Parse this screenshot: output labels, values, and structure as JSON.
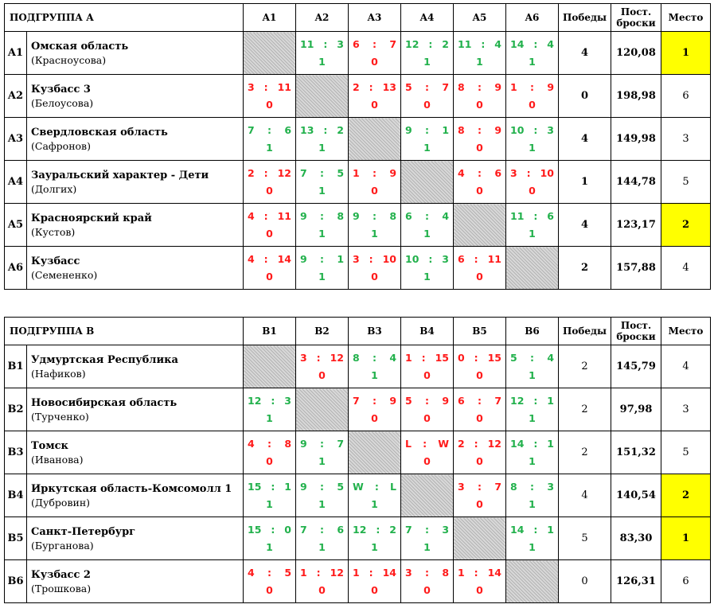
{
  "groups": [
    {
      "title": "ПОДГРУППА А",
      "columns": [
        "A1",
        "A2",
        "A3",
        "A4",
        "A5",
        "A6"
      ],
      "wins_label": "Победы",
      "throws_label": "Пост. броски",
      "place_label": "Место",
      "rows": [
        {
          "code": "A1",
          "team": "Омская область",
          "coach": "(Красноусова)",
          "cells": [
            null,
            {
              "l": "11",
              "r": "3",
              "p": "1",
              "w": true
            },
            {
              "l": "6",
              "r": "7",
              "p": "0",
              "w": false
            },
            {
              "l": "12",
              "r": "2",
              "p": "1",
              "w": true
            },
            {
              "l": "11",
              "r": "4",
              "p": "1",
              "w": true
            },
            {
              "l": "14",
              "r": "4",
              "p": "1",
              "w": true
            }
          ],
          "wins": "4",
          "wins_bold": true,
          "throws": "120,08",
          "place": "1",
          "highlight": true
        },
        {
          "code": "A2",
          "team": "Кузбасс 3",
          "coach": "(Белоусова)",
          "cells": [
            {
              "l": "3",
              "r": "11",
              "p": "0",
              "w": false
            },
            null,
            {
              "l": "2",
              "r": "13",
              "p": "0",
              "w": false
            },
            {
              "l": "5",
              "r": "7",
              "p": "0",
              "w": false
            },
            {
              "l": "8",
              "r": "9",
              "p": "0",
              "w": false
            },
            {
              "l": "1",
              "r": "9",
              "p": "0",
              "w": false
            }
          ],
          "wins": "0",
          "wins_bold": true,
          "throws": "198,98",
          "place": "6",
          "highlight": false
        },
        {
          "code": "A3",
          "team": "Свердловская область",
          "coach": "(Сафронов)",
          "cells": [
            {
              "l": "7",
              "r": "6",
              "p": "1",
              "w": true
            },
            {
              "l": "13",
              "r": "2",
              "p": "1",
              "w": true
            },
            null,
            {
              "l": "9",
              "r": "1",
              "p": "1",
              "w": true
            },
            {
              "l": "8",
              "r": "9",
              "p": "0",
              "w": false
            },
            {
              "l": "10",
              "r": "3",
              "p": "1",
              "w": true
            }
          ],
          "wins": "4",
          "wins_bold": true,
          "throws": "149,98",
          "place": "3",
          "highlight": false
        },
        {
          "code": "A4",
          "team": "Зауральский характер - Дети",
          "coach": "(Долгих)",
          "cells": [
            {
              "l": "2",
              "r": "12",
              "p": "0",
              "w": false
            },
            {
              "l": "7",
              "r": "5",
              "p": "1",
              "w": true
            },
            {
              "l": "1",
              "r": "9",
              "p": "0",
              "w": false
            },
            null,
            {
              "l": "4",
              "r": "6",
              "p": "0",
              "w": false
            },
            {
              "l": "3",
              "r": "10",
              "p": "0",
              "w": false
            }
          ],
          "wins": "1",
          "wins_bold": true,
          "throws": "144,78",
          "place": "5",
          "highlight": false
        },
        {
          "code": "A5",
          "team": "Красноярский край",
          "coach": "(Кустов)",
          "cells": [
            {
              "l": "4",
              "r": "11",
              "p": "0",
              "w": false
            },
            {
              "l": "9",
              "r": "8",
              "p": "1",
              "w": true
            },
            {
              "l": "9",
              "r": "8",
              "p": "1",
              "w": true
            },
            {
              "l": "6",
              "r": "4",
              "p": "1",
              "w": true
            },
            null,
            {
              "l": "11",
              "r": "6",
              "p": "1",
              "w": true
            }
          ],
          "wins": "4",
          "wins_bold": true,
          "throws": "123,17",
          "place": "2",
          "highlight": true
        },
        {
          "code": "A6",
          "team": "Кузбасс",
          "coach": "(Семененко)",
          "cells": [
            {
              "l": "4",
              "r": "14",
              "p": "0",
              "w": false
            },
            {
              "l": "9",
              "r": "1",
              "p": "1",
              "w": true
            },
            {
              "l": "3",
              "r": "10",
              "p": "0",
              "w": false
            },
            {
              "l": "10",
              "r": "3",
              "p": "1",
              "w": true
            },
            {
              "l": "6",
              "r": "11",
              "p": "0",
              "w": false
            },
            null
          ],
          "wins": "2",
          "wins_bold": true,
          "throws": "157,88",
          "place": "4",
          "highlight": false
        }
      ]
    },
    {
      "title": "ПОДГРУППА В",
      "columns": [
        "B1",
        "B2",
        "B3",
        "B4",
        "B5",
        "B6"
      ],
      "wins_label": "Победы",
      "throws_label": "Пост. броски",
      "place_label": "Место",
      "rows": [
        {
          "code": "B1",
          "team": "Удмуртская Республика",
          "coach": "(Нафиков)",
          "cells": [
            null,
            {
              "l": "3",
              "r": "12",
              "p": "0",
              "w": false
            },
            {
              "l": "8",
              "r": "4",
              "p": "1",
              "w": true
            },
            {
              "l": "1",
              "r": "15",
              "p": "0",
              "w": false
            },
            {
              "l": "0",
              "r": "15",
              "p": "0",
              "w": false
            },
            {
              "l": "5",
              "r": "4",
              "p": "1",
              "w": true
            }
          ],
          "wins": "2",
          "wins_bold": false,
          "throws": "145,79",
          "place": "4",
          "highlight": false
        },
        {
          "code": "B2",
          "team": "Новосибирская область",
          "coach": "(Турченко)",
          "cells": [
            {
              "l": "12",
              "r": "3",
              "p": "1",
              "w": true
            },
            null,
            {
              "l": "7",
              "r": "9",
              "p": "0",
              "w": false
            },
            {
              "l": "5",
              "r": "9",
              "p": "0",
              "w": false
            },
            {
              "l": "6",
              "r": "7",
              "p": "0",
              "w": false
            },
            {
              "l": "12",
              "r": "1",
              "p": "1",
              "w": true
            }
          ],
          "wins": "2",
          "wins_bold": false,
          "throws": "97,98",
          "place": "3",
          "highlight": false
        },
        {
          "code": "B3",
          "team": "Томск",
          "coach": "(Иванова)",
          "cells": [
            {
              "l": "4",
              "r": "8",
              "p": "0",
              "w": false
            },
            {
              "l": "9",
              "r": "7",
              "p": "1",
              "w": true
            },
            null,
            {
              "l": "L",
              "r": "W",
              "p": "0",
              "w": false
            },
            {
              "l": "2",
              "r": "12",
              "p": "0",
              "w": false
            },
            {
              "l": "14",
              "r": "1",
              "p": "1",
              "w": true
            }
          ],
          "wins": "2",
          "wins_bold": false,
          "throws": "151,32",
          "place": "5",
          "highlight": false
        },
        {
          "code": "B4",
          "team": "Иркутская область-Комсомолл 1",
          "coach": "(Дубровин)",
          "cells": [
            {
              "l": "15",
              "r": "1",
              "p": "1",
              "w": true
            },
            {
              "l": "9",
              "r": "5",
              "p": "1",
              "w": true
            },
            {
              "l": "W",
              "r": "L",
              "p": "1",
              "w": true
            },
            null,
            {
              "l": "3",
              "r": "7",
              "p": "0",
              "w": false
            },
            {
              "l": "8",
              "r": "3",
              "p": "1",
              "w": true
            }
          ],
          "wins": "4",
          "wins_bold": false,
          "throws": "140,54",
          "place": "2",
          "highlight": true
        },
        {
          "code": "B5",
          "team": "Санкт-Петербург",
          "coach": "(Бурганова)",
          "cells": [
            {
              "l": "15",
              "r": "0",
              "p": "1",
              "w": true
            },
            {
              "l": "7",
              "r": "6",
              "p": "1",
              "w": true
            },
            {
              "l": "12",
              "r": "2",
              "p": "1",
              "w": true
            },
            {
              "l": "7",
              "r": "3",
              "p": "1",
              "w": true
            },
            null,
            {
              "l": "14",
              "r": "1",
              "p": "1",
              "w": true
            }
          ],
          "wins": "5",
          "wins_bold": false,
          "throws": "83,30",
          "place": "1",
          "highlight": true
        },
        {
          "code": "B6",
          "team": "Кузбасс 2",
          "coach": "(Трошкова)",
          "cells": [
            {
              "l": "4",
              "r": "5",
              "p": "0",
              "w": false
            },
            {
              "l": "1",
              "r": "12",
              "p": "0",
              "w": false
            },
            {
              "l": "1",
              "r": "14",
              "p": "0",
              "w": false
            },
            {
              "l": "3",
              "r": "8",
              "p": "0",
              "w": false
            },
            {
              "l": "1",
              "r": "14",
              "p": "0",
              "w": false
            },
            null
          ],
          "wins": "0",
          "wins_bold": false,
          "throws": "126,31",
          "place": "6",
          "highlight": false
        }
      ]
    }
  ]
}
